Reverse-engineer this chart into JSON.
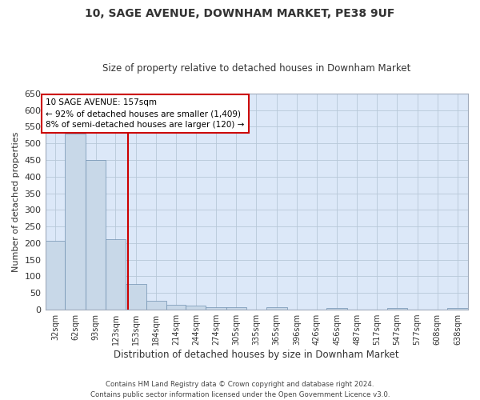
{
  "title": "10, SAGE AVENUE, DOWNHAM MARKET, PE38 9UF",
  "subtitle": "Size of property relative to detached houses in Downham Market",
  "xlabel": "Distribution of detached houses by size in Downham Market",
  "ylabel": "Number of detached properties",
  "footer_line1": "Contains HM Land Registry data © Crown copyright and database right 2024.",
  "footer_line2": "Contains public sector information licensed under the Open Government Licence v3.0.",
  "annotation_line1": "10 SAGE AVENUE: 157sqm",
  "annotation_line2": "← 92% of detached houses are smaller (1,409)",
  "annotation_line3": "8% of semi-detached houses are larger (120) →",
  "property_line_x": 157,
  "bar_color": "#c8d8e8",
  "bar_edge_color": "#7090b0",
  "property_line_color": "#cc0000",
  "annotation_box_color": "#cc0000",
  "figure_background": "#ffffff",
  "axes_background": "#dce8f8",
  "grid_color": "#b8c8d8",
  "categories": [
    "32sqm",
    "62sqm",
    "93sqm",
    "123sqm",
    "153sqm",
    "184sqm",
    "214sqm",
    "244sqm",
    "274sqm",
    "305sqm",
    "335sqm",
    "365sqm",
    "396sqm",
    "426sqm",
    "456sqm",
    "487sqm",
    "517sqm",
    "547sqm",
    "577sqm",
    "608sqm",
    "638sqm"
  ],
  "bin_edges": [
    32,
    62,
    93,
    123,
    153,
    184,
    214,
    244,
    274,
    305,
    335,
    365,
    396,
    426,
    456,
    487,
    517,
    547,
    577,
    608,
    638,
    669
  ],
  "values": [
    208,
    530,
    450,
    213,
    78,
    27,
    15,
    12,
    8,
    8,
    0,
    7,
    0,
    0,
    6,
    0,
    0,
    5,
    0,
    0,
    5
  ],
  "ylim": [
    0,
    650
  ],
  "yticks": [
    0,
    50,
    100,
    150,
    200,
    250,
    300,
    350,
    400,
    450,
    500,
    550,
    600,
    650
  ]
}
